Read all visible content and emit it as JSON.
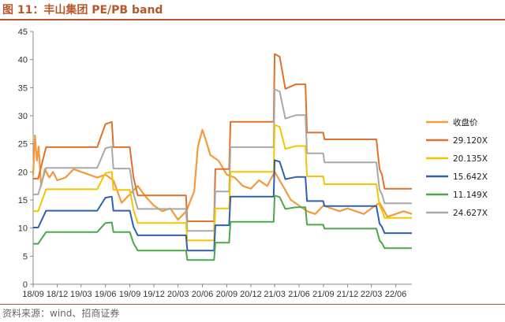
{
  "figure": {
    "title": "图 11：丰山集团 PE/PB band",
    "source": "资料来源：wind、招商证券",
    "accent_color": "#b5582e"
  },
  "chart_data": {
    "type": "line",
    "ylim": [
      0,
      45
    ],
    "yticks": [
      0,
      5,
      10,
      15,
      20,
      25,
      30,
      35,
      40,
      45
    ],
    "xlim": [
      "2018-09",
      "2022-08"
    ],
    "xtick_labels": [
      "18/09",
      "18/12",
      "19/03",
      "19/06",
      "19/09",
      "19/12",
      "20/03",
      "20/06",
      "20/09",
      "20/12",
      "21/03",
      "21/06",
      "21/09",
      "21/12",
      "22/03",
      "22/06"
    ],
    "xtick_dates": [
      "2018-09",
      "2018-12",
      "2019-03",
      "2019-06",
      "2019-09",
      "2019-12",
      "2020-03",
      "2020-06",
      "2020-09",
      "2020-12",
      "2021-03",
      "2021-06",
      "2021-09",
      "2021-12",
      "2022-03",
      "2022-06"
    ],
    "legend_position": "right",
    "grid": false,
    "series": [
      {
        "name": "收盘价",
        "color": "#f39a3c",
        "width": 2.2,
        "x": [
          "2018-09",
          "2018-09-08",
          "2018-09-15",
          "2018-09-22",
          "2018-10",
          "2018-10-15",
          "2018-11",
          "2018-11-15",
          "2018-12",
          "2019-01",
          "2019-02",
          "2019-03",
          "2019-04",
          "2019-05",
          "2019-06",
          "2019-07",
          "2019-08",
          "2019-09",
          "2019-10",
          "2019-11",
          "2019-12",
          "2020-01",
          "2020-02",
          "2020-03",
          "2020-04",
          "2020-05",
          "2020-05-15",
          "2020-06",
          "2020-06-15",
          "2020-07",
          "2020-08",
          "2020-09",
          "2020-10",
          "2020-11",
          "2020-12",
          "2021-01",
          "2021-02",
          "2021-03",
          "2021-04",
          "2021-05",
          "2021-06",
          "2021-07",
          "2021-08",
          "2021-09",
          "2021-10",
          "2021-11",
          "2021-12",
          "2022-01",
          "2022-02",
          "2022-03",
          "2022-04",
          "2022-05",
          "2022-06",
          "2022-07",
          "2022-08"
        ],
        "y": [
          19.5,
          26.5,
          22.0,
          24.5,
          17.5,
          20.5,
          19.0,
          20.0,
          18.5,
          19.0,
          20.5,
          20.0,
          19.5,
          19.0,
          19.5,
          18.5,
          14.5,
          16.0,
          17.5,
          15.5,
          14.0,
          13.0,
          13.5,
          11.5,
          13.0,
          16.5,
          24.5,
          27.5,
          25.5,
          23.0,
          22.0,
          19.5,
          19.0,
          17.5,
          17.0,
          18.5,
          17.5,
          20.0,
          17.5,
          15.0,
          14.0,
          13.0,
          12.5,
          14.0,
          13.5,
          13.0,
          13.5,
          13.0,
          12.5,
          13.5,
          14.5,
          12.0,
          12.5,
          13.0,
          12.5
        ]
      },
      {
        "name": "29.120X",
        "color": "#e0702a",
        "width": 2,
        "x": [
          "2018-09",
          "2018-09-20",
          "2018-10-20",
          "2019-05-01",
          "2019-06-01",
          "2019-06-25",
          "2019-07-01",
          "2019-09-01",
          "2019-09-15",
          "2019-10-01",
          "2020-03-31",
          "2020-04-05",
          "2020-07-15",
          "2020-07-20",
          "2020-09-10",
          "2020-09-15",
          "2021-02-25",
          "2021-03-01",
          "2021-03-20",
          "2021-04-10",
          "2021-05-20",
          "2021-06-25",
          "2021-07-01",
          "2021-08-31",
          "2021-09-05",
          "2022-03-20",
          "2022-04-01",
          "2022-04-10",
          "2022-04-20",
          "2022-08"
        ],
        "y": [
          18.8,
          18.8,
          24.4,
          24.4,
          28.5,
          28.9,
          24.4,
          24.4,
          19.0,
          15.8,
          15.8,
          11.2,
          11.2,
          20.5,
          20.5,
          28.9,
          28.9,
          41.0,
          40.5,
          34.8,
          35.6,
          35.6,
          27.0,
          27.0,
          25.8,
          25.8,
          20.5,
          19.5,
          17.0,
          17.0
        ]
      },
      {
        "name": "24.627X",
        "color": "#a8a8a8",
        "width": 2,
        "x": [
          "2018-09",
          "2018-09-20",
          "2018-10-20",
          "2019-05-01",
          "2019-06-01",
          "2019-06-25",
          "2019-07-01",
          "2019-09-01",
          "2019-09-15",
          "2019-10-01",
          "2020-03-31",
          "2020-04-05",
          "2020-07-15",
          "2020-07-20",
          "2020-09-10",
          "2020-09-15",
          "2021-02-25",
          "2021-03-01",
          "2021-03-20",
          "2021-04-10",
          "2021-05-20",
          "2021-06-25",
          "2021-07-01",
          "2021-08-31",
          "2021-09-05",
          "2022-03-20",
          "2022-04-01",
          "2022-04-10",
          "2022-04-20",
          "2022-08"
        ],
        "y": [
          16.0,
          16.0,
          20.7,
          20.7,
          24.2,
          24.5,
          20.6,
          20.6,
          16.1,
          13.4,
          13.4,
          9.5,
          9.5,
          16.5,
          16.5,
          24.4,
          24.4,
          34.7,
          34.3,
          29.5,
          30.1,
          30.1,
          23.3,
          23.3,
          21.7,
          21.7,
          16.8,
          16.0,
          14.4,
          14.4
        ]
      },
      {
        "name": "20.135X",
        "color": "#f5c400",
        "width": 2,
        "x": [
          "2018-09",
          "2018-09-20",
          "2018-10-20",
          "2019-05-01",
          "2019-06-01",
          "2019-06-25",
          "2019-07-01",
          "2019-09-01",
          "2019-09-15",
          "2019-10-01",
          "2020-03-31",
          "2020-04-05",
          "2020-07-15",
          "2020-07-20",
          "2020-09-10",
          "2020-09-15",
          "2021-02-25",
          "2021-03-01",
          "2021-03-20",
          "2021-04-10",
          "2021-05-20",
          "2021-06-25",
          "2021-07-01",
          "2021-08-31",
          "2021-09-05",
          "2022-03-20",
          "2022-04-01",
          "2022-04-10",
          "2022-04-20",
          "2022-08"
        ],
        "y": [
          13.0,
          13.0,
          16.9,
          16.9,
          19.8,
          20.0,
          16.8,
          16.8,
          13.2,
          10.9,
          10.9,
          7.8,
          7.8,
          13.5,
          13.5,
          20.0,
          20.0,
          28.4,
          28.0,
          24.1,
          24.6,
          24.6,
          19.2,
          19.2,
          17.8,
          17.8,
          14.0,
          13.2,
          11.8,
          11.8
        ]
      },
      {
        "name": "15.642X",
        "color": "#2f5fb3",
        "width": 2,
        "x": [
          "2018-09",
          "2018-09-20",
          "2018-10-20",
          "2019-05-01",
          "2019-06-01",
          "2019-06-25",
          "2019-07-01",
          "2019-09-01",
          "2019-09-15",
          "2019-10-01",
          "2020-03-31",
          "2020-04-05",
          "2020-07-15",
          "2020-07-20",
          "2020-09-10",
          "2020-09-15",
          "2021-02-25",
          "2021-03-01",
          "2021-03-20",
          "2021-04-10",
          "2021-05-20",
          "2021-06-25",
          "2021-07-01",
          "2021-08-31",
          "2021-09-05",
          "2022-03-20",
          "2022-04-01",
          "2022-04-10",
          "2022-04-20",
          "2022-08"
        ],
        "y": [
          10.1,
          10.1,
          13.1,
          13.1,
          15.4,
          15.6,
          13.1,
          13.1,
          10.2,
          8.7,
          8.7,
          6.0,
          6.0,
          10.5,
          10.5,
          15.6,
          15.6,
          22.1,
          21.8,
          18.7,
          19.1,
          19.1,
          14.8,
          14.8,
          13.9,
          13.9,
          10.8,
          10.2,
          9.1,
          9.1
        ]
      },
      {
        "name": "11.149X",
        "color": "#4aa84a",
        "width": 2,
        "x": [
          "2018-09",
          "2018-09-20",
          "2018-10-20",
          "2019-05-01",
          "2019-06-01",
          "2019-06-25",
          "2019-07-01",
          "2019-09-01",
          "2019-09-15",
          "2019-10-01",
          "2020-03-31",
          "2020-04-05",
          "2020-07-15",
          "2020-07-20",
          "2020-09-10",
          "2020-09-15",
          "2021-02-25",
          "2021-03-01",
          "2021-03-20",
          "2021-04-10",
          "2021-05-20",
          "2021-06-25",
          "2021-07-01",
          "2021-08-31",
          "2021-09-05",
          "2022-03-20",
          "2022-04-01",
          "2022-04-10",
          "2022-04-20",
          "2022-08"
        ],
        "y": [
          7.2,
          7.2,
          9.3,
          9.3,
          10.9,
          11.0,
          9.3,
          9.3,
          7.3,
          6.0,
          6.0,
          4.3,
          4.3,
          7.4,
          7.4,
          11.1,
          11.1,
          15.8,
          15.5,
          13.4,
          13.7,
          13.7,
          10.6,
          10.6,
          9.9,
          9.9,
          7.8,
          7.3,
          6.4,
          6.4
        ]
      }
    ],
    "legend_order": [
      "收盘价",
      "29.120X",
      "20.135X",
      "15.642X",
      "11.149X",
      "24.627X"
    ]
  }
}
